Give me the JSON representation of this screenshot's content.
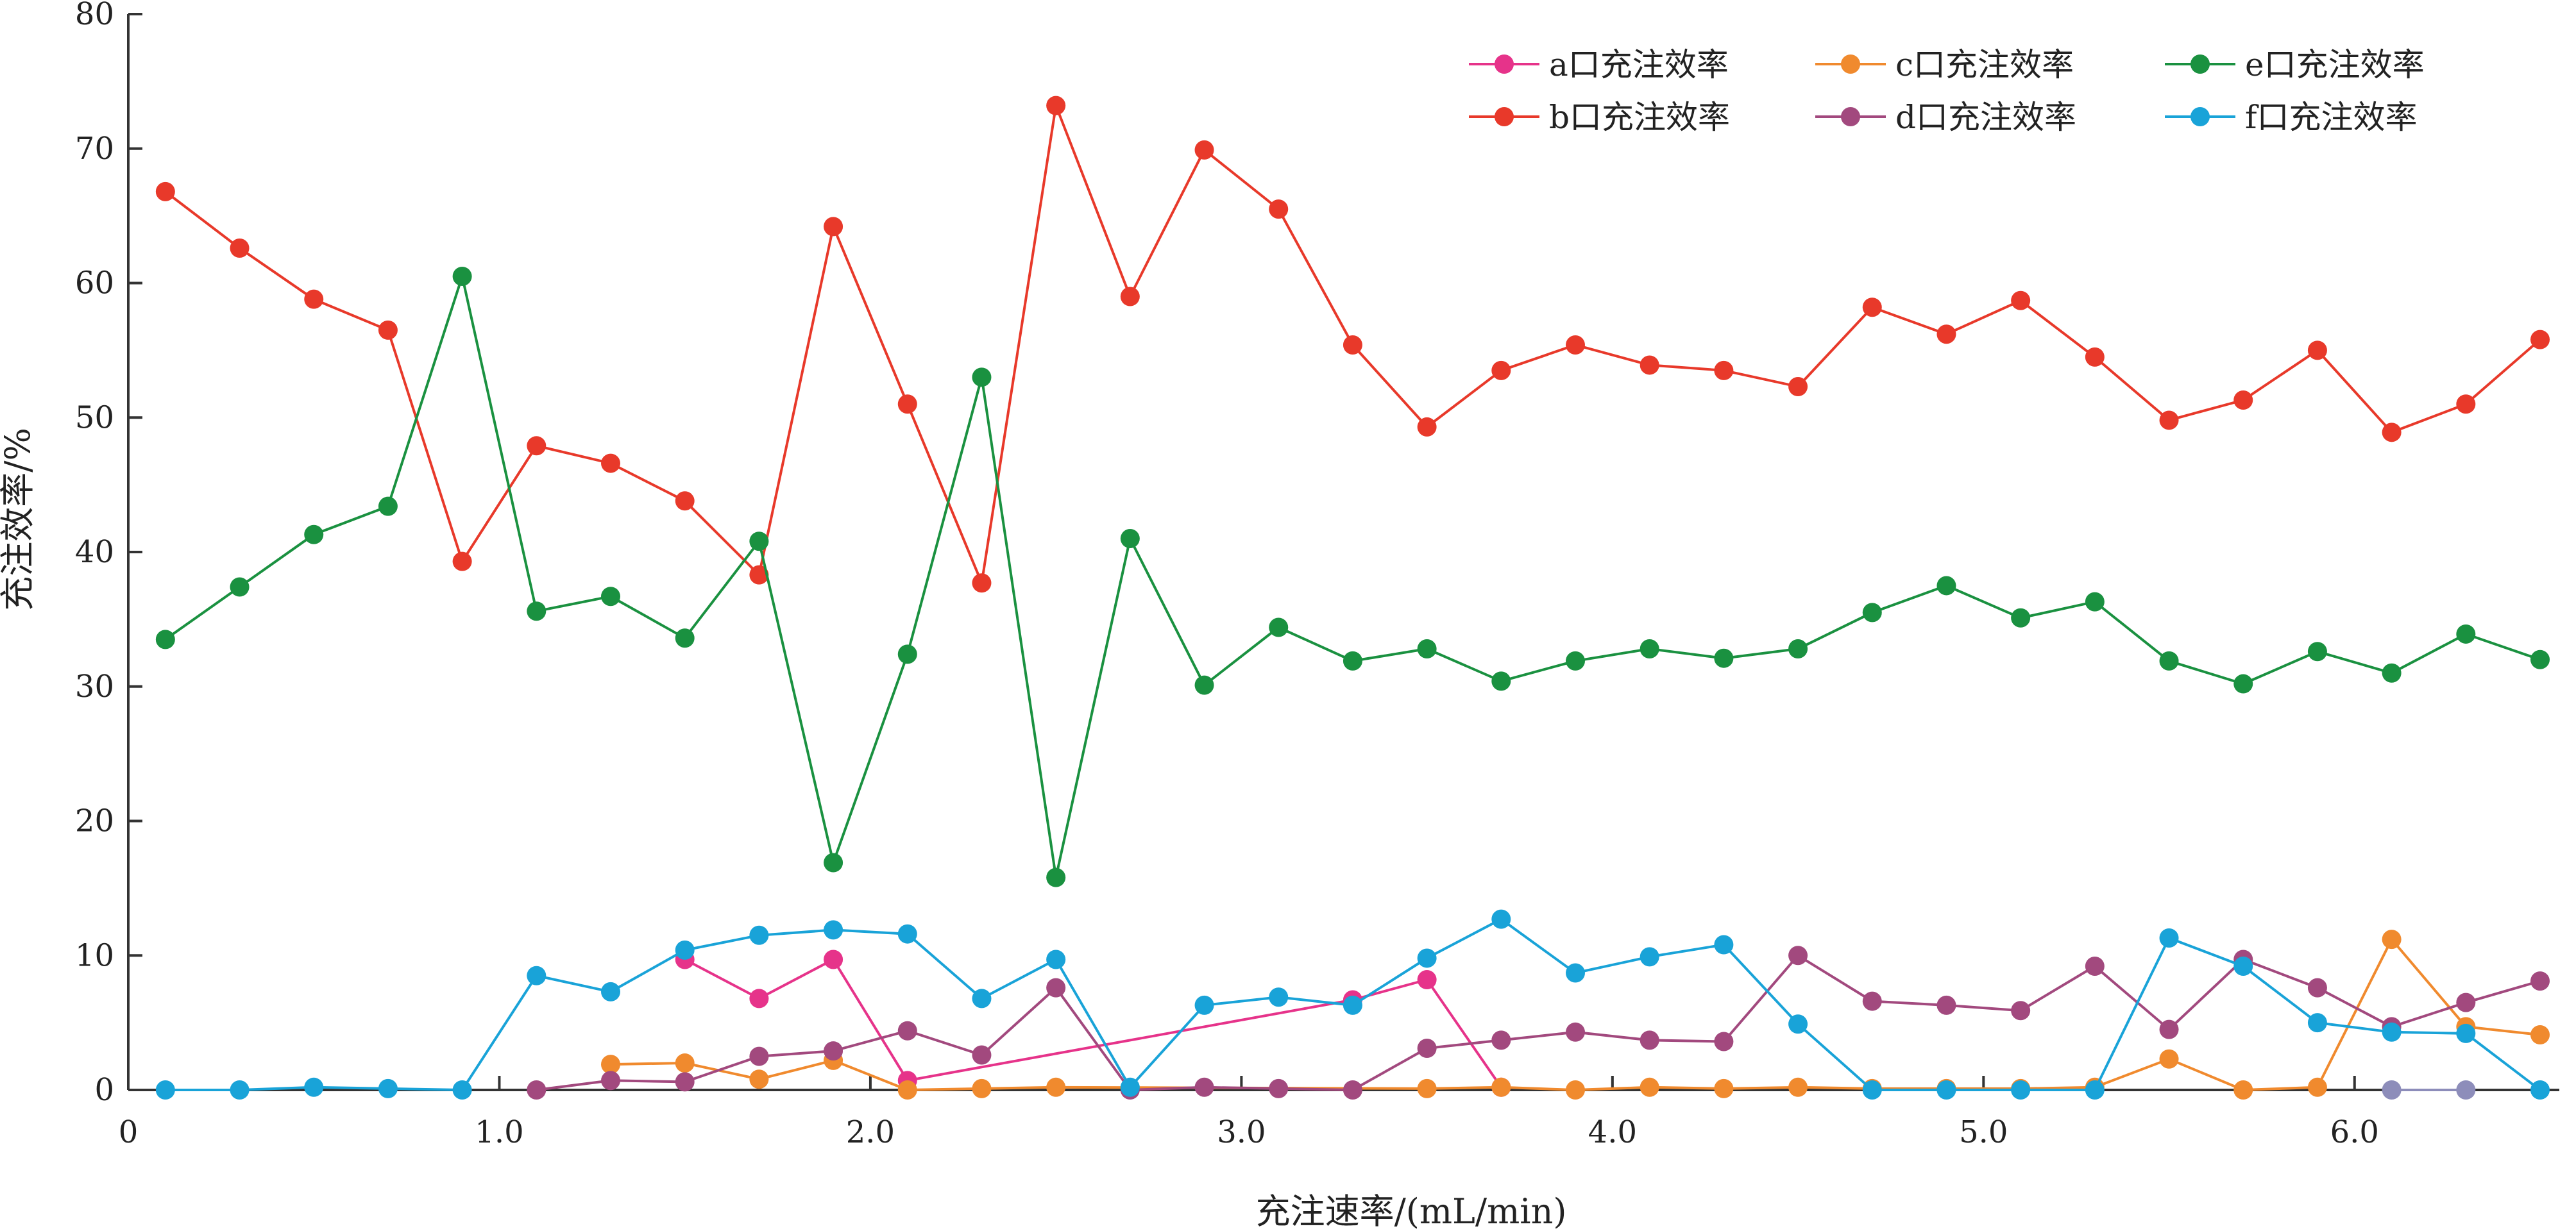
{
  "chart_data": {
    "type": "line",
    "xlabel": "充注速率/(mL/min)",
    "ylabel": "充注效率/%",
    "xlim": [
      0,
      6.5
    ],
    "ylim": [
      0,
      80
    ],
    "x_ticks": [
      0,
      1.0,
      2.0,
      3.0,
      4.0,
      5.0,
      6.0
    ],
    "x_tick_labels": [
      "0",
      "1.0",
      "2.0",
      "3.0",
      "4.0",
      "5.0",
      "6.0"
    ],
    "y_ticks": [
      0,
      10,
      20,
      30,
      40,
      50,
      60,
      70,
      80
    ],
    "y_tick_labels": [
      "0",
      "10",
      "20",
      "30",
      "40",
      "50",
      "60",
      "70",
      "80"
    ],
    "grid": false,
    "legend_position": "top-right",
    "series": [
      {
        "name": "a口充注效率",
        "color": "#e6338a",
        "points": [
          [
            1.5,
            9.7
          ],
          [
            1.7,
            6.8
          ],
          [
            1.9,
            9.7
          ],
          [
            2.1,
            0.7
          ],
          [
            3.3,
            6.7
          ],
          [
            3.5,
            8.2
          ],
          [
            3.7,
            0.2
          ]
        ]
      },
      {
        "name": "b口充注效率",
        "color": "#e8392a",
        "points": [
          [
            0.1,
            66.8
          ],
          [
            0.3,
            62.6
          ],
          [
            0.5,
            58.8
          ],
          [
            0.7,
            56.5
          ],
          [
            0.9,
            39.3
          ],
          [
            1.1,
            47.9
          ],
          [
            1.3,
            46.6
          ],
          [
            1.5,
            43.8
          ],
          [
            1.7,
            38.3
          ],
          [
            1.9,
            64.2
          ],
          [
            2.1,
            51.0
          ],
          [
            2.3,
            37.7
          ],
          [
            2.5,
            73.2
          ],
          [
            2.7,
            59.0
          ],
          [
            2.9,
            69.9
          ],
          [
            3.1,
            65.5
          ],
          [
            3.3,
            55.4
          ],
          [
            3.5,
            49.3
          ],
          [
            3.7,
            53.5
          ],
          [
            3.9,
            55.4
          ],
          [
            4.1,
            53.9
          ],
          [
            4.3,
            53.5
          ],
          [
            4.5,
            52.3
          ],
          [
            4.7,
            58.2
          ],
          [
            4.9,
            56.2
          ],
          [
            5.1,
            58.7
          ],
          [
            5.3,
            54.5
          ],
          [
            5.5,
            49.8
          ],
          [
            5.7,
            51.3
          ],
          [
            5.9,
            55.0
          ],
          [
            6.1,
            48.9
          ],
          [
            6.3,
            51.0
          ],
          [
            6.5,
            55.8
          ]
        ]
      },
      {
        "name": "c口充注效率",
        "color": "#f08a2e",
        "points": [
          [
            1.3,
            1.9
          ],
          [
            1.5,
            2.0
          ],
          [
            1.7,
            0.8
          ],
          [
            1.9,
            2.2
          ],
          [
            2.1,
            0.0
          ],
          [
            2.3,
            0.1
          ],
          [
            2.5,
            0.2
          ],
          [
            3.5,
            0.1
          ],
          [
            3.7,
            0.2
          ],
          [
            3.9,
            0.0
          ],
          [
            4.1,
            0.2
          ],
          [
            4.3,
            0.1
          ],
          [
            4.5,
            0.2
          ],
          [
            4.7,
            0.1
          ],
          [
            4.9,
            0.1
          ],
          [
            5.1,
            0.1
          ],
          [
            5.3,
            0.2
          ],
          [
            5.5,
            2.3
          ],
          [
            5.7,
            0.0
          ],
          [
            5.9,
            0.2
          ],
          [
            6.1,
            11.2
          ],
          [
            6.3,
            4.7
          ],
          [
            6.5,
            4.1
          ]
        ]
      },
      {
        "name": "d口充注效率",
        "color": "#a2497e",
        "points": [
          [
            1.1,
            0.0
          ],
          [
            1.3,
            0.7
          ],
          [
            1.5,
            0.6
          ],
          [
            1.7,
            2.5
          ],
          [
            1.9,
            2.9
          ],
          [
            2.1,
            4.4
          ],
          [
            2.3,
            2.6
          ],
          [
            2.5,
            7.6
          ],
          [
            2.7,
            0.0
          ],
          [
            2.9,
            0.2
          ],
          [
            3.1,
            0.1
          ],
          [
            3.3,
            0.0
          ],
          [
            3.5,
            3.1
          ],
          [
            3.7,
            3.7
          ],
          [
            3.9,
            4.3
          ],
          [
            4.1,
            3.7
          ],
          [
            4.3,
            3.6
          ],
          [
            4.5,
            10.0
          ],
          [
            4.7,
            6.6
          ],
          [
            4.9,
            6.3
          ],
          [
            5.1,
            5.9
          ],
          [
            5.3,
            9.2
          ],
          [
            5.5,
            4.5
          ],
          [
            5.7,
            9.7
          ],
          [
            5.9,
            7.6
          ],
          [
            6.1,
            4.7
          ],
          [
            6.3,
            6.5
          ],
          [
            6.5,
            8.1
          ]
        ]
      },
      {
        "name": "e口充注效率",
        "color": "#1a9140",
        "points": [
          [
            0.1,
            33.5
          ],
          [
            0.3,
            37.4
          ],
          [
            0.5,
            41.3
          ],
          [
            0.7,
            43.4
          ],
          [
            0.9,
            60.5
          ],
          [
            1.1,
            35.6
          ],
          [
            1.3,
            36.7
          ],
          [
            1.5,
            33.6
          ],
          [
            1.7,
            40.8
          ],
          [
            1.9,
            16.9
          ],
          [
            2.1,
            32.4
          ],
          [
            2.3,
            53.0
          ],
          [
            2.5,
            15.8
          ],
          [
            2.7,
            41.0
          ],
          [
            2.9,
            30.1
          ],
          [
            3.1,
            34.4
          ],
          [
            3.3,
            31.9
          ],
          [
            3.5,
            32.8
          ],
          [
            3.7,
            30.4
          ],
          [
            3.9,
            31.9
          ],
          [
            4.1,
            32.8
          ],
          [
            4.3,
            32.1
          ],
          [
            4.5,
            32.8
          ],
          [
            4.7,
            35.5
          ],
          [
            4.9,
            37.5
          ],
          [
            5.1,
            35.1
          ],
          [
            5.3,
            36.3
          ],
          [
            5.5,
            31.9
          ],
          [
            5.7,
            30.2
          ],
          [
            5.9,
            32.6
          ],
          [
            6.1,
            31.0
          ],
          [
            6.3,
            33.9
          ],
          [
            6.5,
            32.0
          ]
        ]
      },
      {
        "name": "f口充注效率",
        "color": "#19a3d8",
        "points": [
          [
            0.1,
            0.0
          ],
          [
            0.3,
            0.0
          ],
          [
            0.5,
            0.2
          ],
          [
            0.7,
            0.1
          ],
          [
            0.9,
            0.0
          ],
          [
            1.1,
            8.5
          ],
          [
            1.3,
            7.3
          ],
          [
            1.5,
            10.4
          ],
          [
            1.7,
            11.5
          ],
          [
            1.9,
            11.9
          ],
          [
            2.1,
            11.6
          ],
          [
            2.3,
            6.8
          ],
          [
            2.5,
            9.7
          ],
          [
            2.7,
            0.2
          ],
          [
            2.9,
            6.3
          ],
          [
            3.1,
            6.9
          ],
          [
            3.3,
            6.3
          ],
          [
            3.5,
            9.8
          ],
          [
            3.7,
            12.7
          ],
          [
            3.9,
            8.7
          ],
          [
            4.1,
            9.9
          ],
          [
            4.3,
            10.8
          ],
          [
            4.5,
            4.9
          ],
          [
            4.7,
            0.0
          ],
          [
            4.9,
            0.0
          ],
          [
            5.1,
            0.0
          ],
          [
            5.3,
            0.0
          ],
          [
            5.5,
            11.3
          ],
          [
            5.7,
            9.2
          ],
          [
            5.9,
            5.0
          ],
          [
            6.1,
            4.3
          ],
          [
            6.3,
            4.2
          ],
          [
            6.5,
            0.0
          ]
        ]
      },
      {
        "name": "",
        "color": "#8d8dba",
        "points": [
          [
            6.1,
            0.0
          ],
          [
            6.3,
            0.0
          ]
        ]
      }
    ]
  }
}
